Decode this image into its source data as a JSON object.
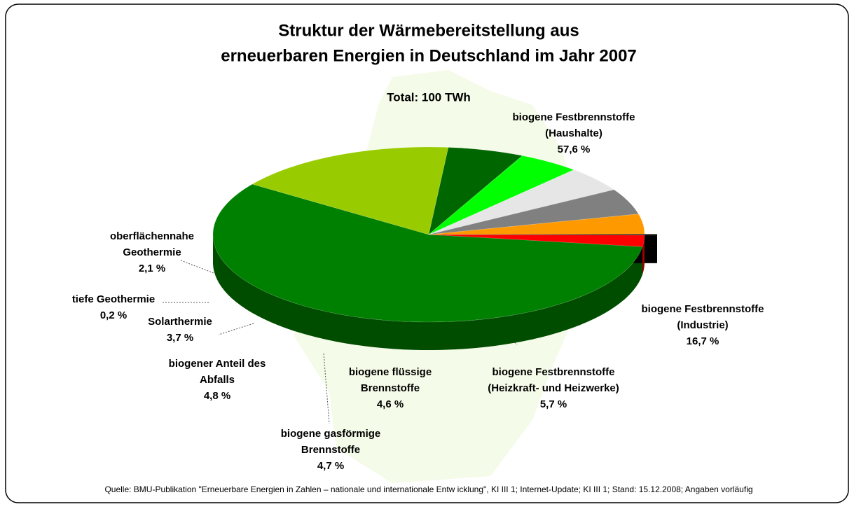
{
  "chart_data": {
    "type": "pie3d",
    "title": [
      "Struktur der Wärmebereitstellung aus",
      "erneuerbaren Energien in Deutschland im Jahr 2007"
    ],
    "subtitle": "Total: 100 TWh",
    "source": "Quelle: BMU-Publikation \"Erneuerbare Energien in Zahlen – nationale und internationale Entw icklung\", KI III 1; Internet-Update; KI III 1; Stand: 15.12.2008; Angaben vorläufig",
    "categories": [
      [
        "biogene Festbrennstoffe",
        "(Haushalte)"
      ],
      [
        "biogene Festbrennstoffe",
        "(Industrie)"
      ],
      [
        "biogene Festbrennstoffe",
        "(Heizkraft- und Heizwerke)"
      ],
      [
        "biogene flüssige",
        "Brennstoffe"
      ],
      [
        "biogene gasförmige",
        "Brennstoffe"
      ],
      [
        "biogener Anteil des",
        "Abfalls"
      ],
      [
        "Solarthermie"
      ],
      [
        "tiefe Geothermie"
      ],
      [
        "oberflächennahe",
        "Geothermie"
      ]
    ],
    "values": [
      57.6,
      16.7,
      5.7,
      4.6,
      4.7,
      4.8,
      3.7,
      0.2,
      2.1
    ],
    "value_labels": [
      "57,6 %",
      "16,7 %",
      "5,7 %",
      "4,6 %",
      "4,7 %",
      "4,8 %",
      "3,7 %",
      "0,2 %",
      "2,1 %"
    ],
    "colors": [
      "#008000",
      "#99cc00",
      "#006600",
      "#00ff00",
      "#e6e6e6",
      "#808080",
      "#ff9900",
      "#000000",
      "#ff0000"
    ]
  }
}
